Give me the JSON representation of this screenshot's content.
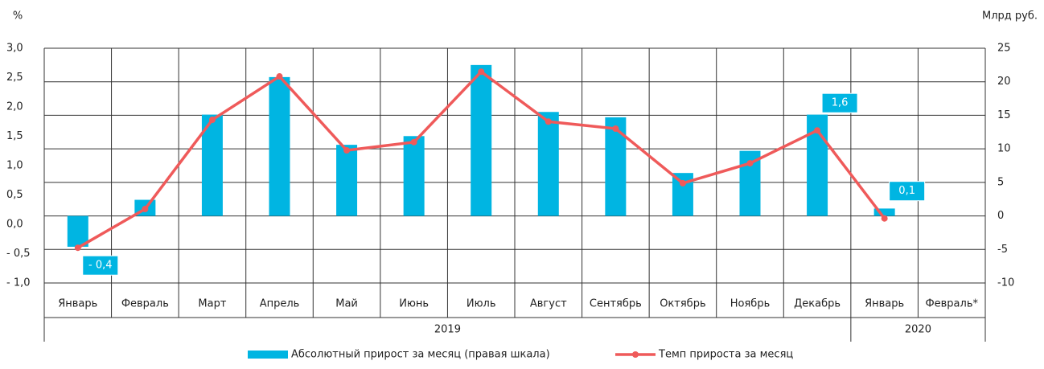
{
  "chart_data": {
    "type": "bar-line",
    "y_unit": "%",
    "y2_unit": "Млрд руб.",
    "categories": [
      "Январь",
      "Февраль",
      "Март",
      "Апрель",
      "Май",
      "Июнь",
      "Июль",
      "Август",
      "Сентябрь",
      "Октябрь",
      "Ноябрь",
      "Декабрь",
      "Январь",
      "Февраль*"
    ],
    "year_groups": [
      {
        "label": "2019",
        "span": 12
      },
      {
        "label": "2020",
        "span": 2
      }
    ],
    "ylim": [
      -1,
      3
    ],
    "yticks": [
      {
        "value": 3,
        "label": "3,0"
      },
      {
        "value": 2.5,
        "label": "2,5"
      },
      {
        "value": 2,
        "label": "2,0"
      },
      {
        "value": 1.5,
        "label": "1,5"
      },
      {
        "value": 1,
        "label": "1,0"
      },
      {
        "value": 0.5,
        "label": "0,5"
      },
      {
        "value": 0,
        "label": "0,0"
      },
      {
        "value": -0.5,
        "label": "- 0,5"
      },
      {
        "value": -1,
        "label": "- 1,0"
      }
    ],
    "y2lim": [
      -10,
      25
    ],
    "y2ticks": [
      25,
      20,
      15,
      10,
      5,
      0,
      -5,
      -10
    ],
    "grid": true,
    "series": [
      {
        "name": "Абсолютный прирост за месяц (правая шкала)",
        "type": "bar",
        "axis": "y2",
        "color": "#00b5e2",
        "values": [
          -4.6,
          2.4,
          15.1,
          20.7,
          10.6,
          11.9,
          22.5,
          15.5,
          14.7,
          6.4,
          9.7,
          15.1,
          1.1,
          null
        ]
      },
      {
        "name": "Темп прироста за месяц",
        "type": "line",
        "axis": "y",
        "color": "#ef5a5a",
        "values": [
          -0.4,
          0.26,
          1.78,
          2.52,
          1.26,
          1.4,
          2.6,
          1.75,
          1.63,
          0.7,
          1.04,
          1.6,
          0.1,
          null
        ],
        "value_labels": [
          "- 0,4",
          null,
          null,
          null,
          null,
          null,
          null,
          null,
          null,
          null,
          null,
          "1,6",
          "0,1",
          null
        ]
      }
    ]
  }
}
